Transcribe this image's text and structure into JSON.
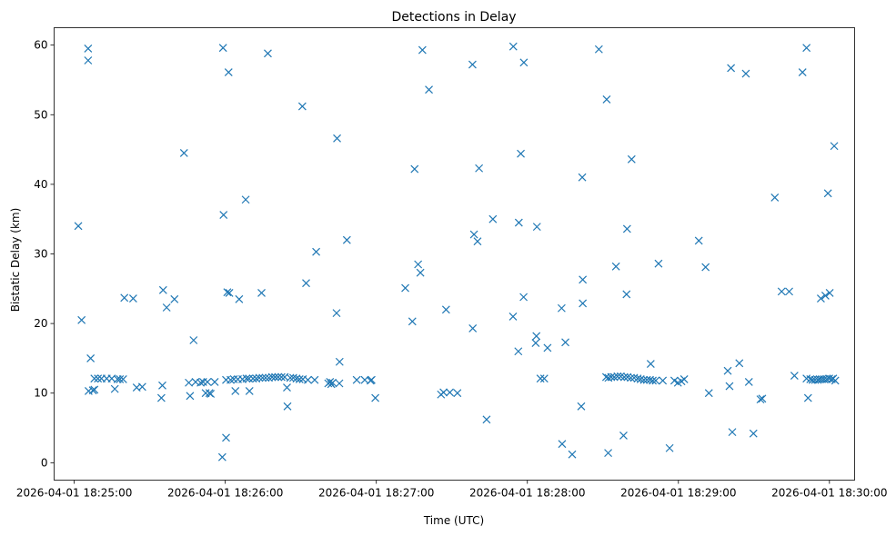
{
  "chart_data": {
    "type": "scatter",
    "title": "Detections in Delay",
    "xlabel": "Time (UTC)",
    "ylabel": "Bistatic Delay (km)",
    "x_unit": "seconds after 2026-04-01 18:25:00 UTC",
    "xlim": [
      -8,
      310
    ],
    "ylim": [
      -2.5,
      62.5
    ],
    "grid": false,
    "marker": "x",
    "color": "#1f77b4",
    "xticks": [
      {
        "value": 0,
        "label": "2026-04-01 18:25:00"
      },
      {
        "value": 60,
        "label": "2026-04-01 18:26:00"
      },
      {
        "value": 120,
        "label": "2026-04-01 18:27:00"
      },
      {
        "value": 180,
        "label": "2026-04-01 18:28:00"
      },
      {
        "value": 240,
        "label": "2026-04-01 18:29:00"
      },
      {
        "value": 300,
        "label": "2026-04-01 18:30:00"
      }
    ],
    "yticks": [
      {
        "value": 0,
        "label": "0"
      },
      {
        "value": 10,
        "label": "10"
      },
      {
        "value": 20,
        "label": "20"
      },
      {
        "value": 30,
        "label": "30"
      },
      {
        "value": 40,
        "label": "40"
      },
      {
        "value": 50,
        "label": "50"
      },
      {
        "value": 60,
        "label": "60"
      }
    ],
    "points": [
      [
        1.6,
        34.0
      ],
      [
        2.9,
        20.5
      ],
      [
        5.5,
        59.5
      ],
      [
        5.5,
        57.8
      ],
      [
        5.7,
        10.3
      ],
      [
        6.5,
        15.0
      ],
      [
        7.4,
        10.4
      ],
      [
        8.0,
        10.5
      ],
      [
        8.0,
        12.1
      ],
      [
        9.4,
        12.1
      ],
      [
        10.8,
        12.1
      ],
      [
        12.9,
        12.1
      ],
      [
        14.9,
        12.1
      ],
      [
        16.1,
        10.6
      ],
      [
        17.2,
        12.0
      ],
      [
        18.1,
        12.0
      ],
      [
        19.4,
        12.0
      ],
      [
        19.9,
        23.7
      ],
      [
        23.4,
        23.6
      ],
      [
        24.8,
        10.8
      ],
      [
        27.0,
        10.9
      ],
      [
        34.6,
        9.3
      ],
      [
        35.0,
        11.1
      ],
      [
        35.3,
        24.8
      ],
      [
        36.7,
        22.3
      ],
      [
        39.8,
        23.5
      ],
      [
        43.6,
        44.5
      ],
      [
        45.5,
        11.5
      ],
      [
        46.0,
        9.6
      ],
      [
        47.4,
        17.6
      ],
      [
        48.2,
        11.6
      ],
      [
        50.2,
        11.5
      ],
      [
        51.2,
        11.6
      ],
      [
        52.2,
        10.0
      ],
      [
        52.9,
        11.6
      ],
      [
        53.7,
        10.0
      ],
      [
        54.2,
        9.9
      ],
      [
        55.8,
        11.6
      ],
      [
        58.8,
        0.8
      ],
      [
        59.1,
        59.6
      ],
      [
        59.3,
        35.6
      ],
      [
        60.3,
        3.6
      ],
      [
        60.3,
        11.9
      ],
      [
        60.8,
        24.5
      ],
      [
        61.3,
        56.1
      ],
      [
        61.6,
        24.4
      ],
      [
        62.1,
        11.9
      ],
      [
        63.4,
        12.0
      ],
      [
        64.0,
        10.3
      ],
      [
        65.0,
        12.0
      ],
      [
        65.5,
        23.5
      ],
      [
        66.8,
        12.0
      ],
      [
        68.1,
        37.8
      ],
      [
        68.4,
        12.1
      ],
      [
        69.4,
        12.1
      ],
      [
        69.6,
        10.3
      ],
      [
        71.0,
        12.1
      ],
      [
        72.3,
        12.1
      ],
      [
        73.5,
        12.2
      ],
      [
        74.4,
        24.4
      ],
      [
        74.8,
        12.2
      ],
      [
        76.0,
        12.2
      ],
      [
        76.9,
        58.8
      ],
      [
        77.3,
        12.2
      ],
      [
        78.6,
        12.3
      ],
      [
        79.8,
        12.3
      ],
      [
        81.0,
        12.3
      ],
      [
        82.3,
        12.3
      ],
      [
        83.6,
        12.3
      ],
      [
        84.5,
        10.8
      ],
      [
        84.7,
        8.1
      ],
      [
        85.8,
        12.2
      ],
      [
        87.0,
        12.2
      ],
      [
        88.3,
        12.1
      ],
      [
        89.5,
        12.0
      ],
      [
        90.6,
        51.2
      ],
      [
        90.8,
        12.0
      ],
      [
        92.1,
        25.8
      ],
      [
        92.8,
        11.9
      ],
      [
        95.5,
        11.9
      ],
      [
        96.1,
        30.3
      ],
      [
        100.9,
        11.4
      ],
      [
        101.6,
        11.6
      ],
      [
        102.1,
        11.3
      ],
      [
        102.6,
        11.5
      ],
      [
        104.2,
        21.5
      ],
      [
        104.4,
        46.6
      ],
      [
        105.3,
        11.4
      ],
      [
        105.4,
        14.5
      ],
      [
        108.3,
        32.0
      ],
      [
        112.2,
        11.9
      ],
      [
        115.4,
        11.9
      ],
      [
        117.7,
        11.8
      ],
      [
        118.1,
        11.9
      ],
      [
        119.6,
        9.3
      ],
      [
        131.5,
        25.1
      ],
      [
        134.3,
        20.3
      ],
      [
        135.2,
        42.2
      ],
      [
        136.6,
        28.5
      ],
      [
        137.5,
        27.3
      ],
      [
        138.3,
        59.3
      ],
      [
        140.9,
        53.6
      ],
      [
        145.7,
        9.8
      ],
      [
        146.7,
        10.1
      ],
      [
        147.7,
        22.0
      ],
      [
        149.2,
        10.1
      ],
      [
        152.2,
        10.0
      ],
      [
        158.2,
        57.2
      ],
      [
        158.3,
        19.3
      ],
      [
        158.8,
        32.8
      ],
      [
        160.2,
        31.8
      ],
      [
        160.8,
        42.3
      ],
      [
        163.8,
        6.2
      ],
      [
        166.3,
        35.0
      ],
      [
        174.3,
        21.0
      ],
      [
        174.4,
        59.8
      ],
      [
        176.4,
        16.0
      ],
      [
        176.6,
        34.5
      ],
      [
        177.4,
        44.4
      ],
      [
        178.5,
        23.8
      ],
      [
        178.6,
        57.5
      ],
      [
        183.3,
        17.2
      ],
      [
        183.6,
        18.2
      ],
      [
        183.8,
        33.9
      ],
      [
        185.2,
        12.1
      ],
      [
        186.7,
        12.1
      ],
      [
        188.0,
        16.5
      ],
      [
        193.6,
        22.2
      ],
      [
        193.8,
        2.7
      ],
      [
        195.1,
        17.3
      ],
      [
        197.8,
        1.2
      ],
      [
        201.4,
        8.1
      ],
      [
        201.8,
        41.0
      ],
      [
        202.0,
        26.3
      ],
      [
        202.0,
        22.9
      ],
      [
        208.4,
        59.4
      ],
      [
        211.3,
        12.3
      ],
      [
        211.5,
        52.2
      ],
      [
        212.1,
        1.4
      ],
      [
        212.2,
        12.2
      ],
      [
        213.3,
        12.3
      ],
      [
        214.5,
        12.3
      ],
      [
        215.2,
        28.2
      ],
      [
        215.8,
        12.4
      ],
      [
        217.1,
        12.4
      ],
      [
        218.2,
        3.9
      ],
      [
        218.5,
        12.3
      ],
      [
        219.4,
        24.2
      ],
      [
        219.6,
        33.6
      ],
      [
        219.8,
        12.3
      ],
      [
        221.1,
        12.2
      ],
      [
        221.4,
        43.6
      ],
      [
        222.4,
        12.2
      ],
      [
        223.8,
        12.1
      ],
      [
        225.0,
        12.0
      ],
      [
        226.3,
        11.9
      ],
      [
        227.5,
        11.9
      ],
      [
        228.7,
        11.9
      ],
      [
        229.0,
        14.2
      ],
      [
        229.8,
        11.8
      ],
      [
        231.0,
        11.8
      ],
      [
        232.1,
        28.6
      ],
      [
        233.8,
        11.8
      ],
      [
        236.5,
        2.1
      ],
      [
        238.4,
        11.8
      ],
      [
        239.8,
        11.5
      ],
      [
        241.2,
        11.7
      ],
      [
        242.3,
        12.0
      ],
      [
        248.1,
        31.9
      ],
      [
        250.8,
        28.1
      ],
      [
        252.1,
        10.0
      ],
      [
        259.6,
        13.2
      ],
      [
        260.3,
        11.0
      ],
      [
        260.9,
        56.7
      ],
      [
        261.4,
        4.4
      ],
      [
        264.2,
        14.3
      ],
      [
        266.8,
        55.9
      ],
      [
        268.0,
        11.6
      ],
      [
        269.8,
        4.2
      ],
      [
        272.6,
        9.1
      ],
      [
        273.3,
        9.2
      ],
      [
        278.3,
        38.1
      ],
      [
        281.0,
        24.6
      ],
      [
        284.0,
        24.6
      ],
      [
        286.1,
        12.5
      ],
      [
        289.3,
        56.1
      ],
      [
        290.9,
        59.6
      ],
      [
        290.9,
        12.1
      ],
      [
        291.5,
        9.3
      ],
      [
        292.4,
        12.0
      ],
      [
        293.3,
        11.9
      ],
      [
        294.3,
        11.9
      ],
      [
        295.4,
        11.9
      ],
      [
        296.1,
        12.0
      ],
      [
        296.6,
        23.6
      ],
      [
        297.0,
        12.0
      ],
      [
        297.9,
        12.0
      ],
      [
        298.4,
        24.0
      ],
      [
        298.9,
        12.0
      ],
      [
        299.4,
        38.7
      ],
      [
        299.9,
        12.1
      ],
      [
        300.1,
        24.4
      ],
      [
        300.9,
        12.0
      ],
      [
        301.5,
        12.1
      ],
      [
        301.9,
        45.5
      ],
      [
        302.3,
        11.8
      ]
    ]
  }
}
